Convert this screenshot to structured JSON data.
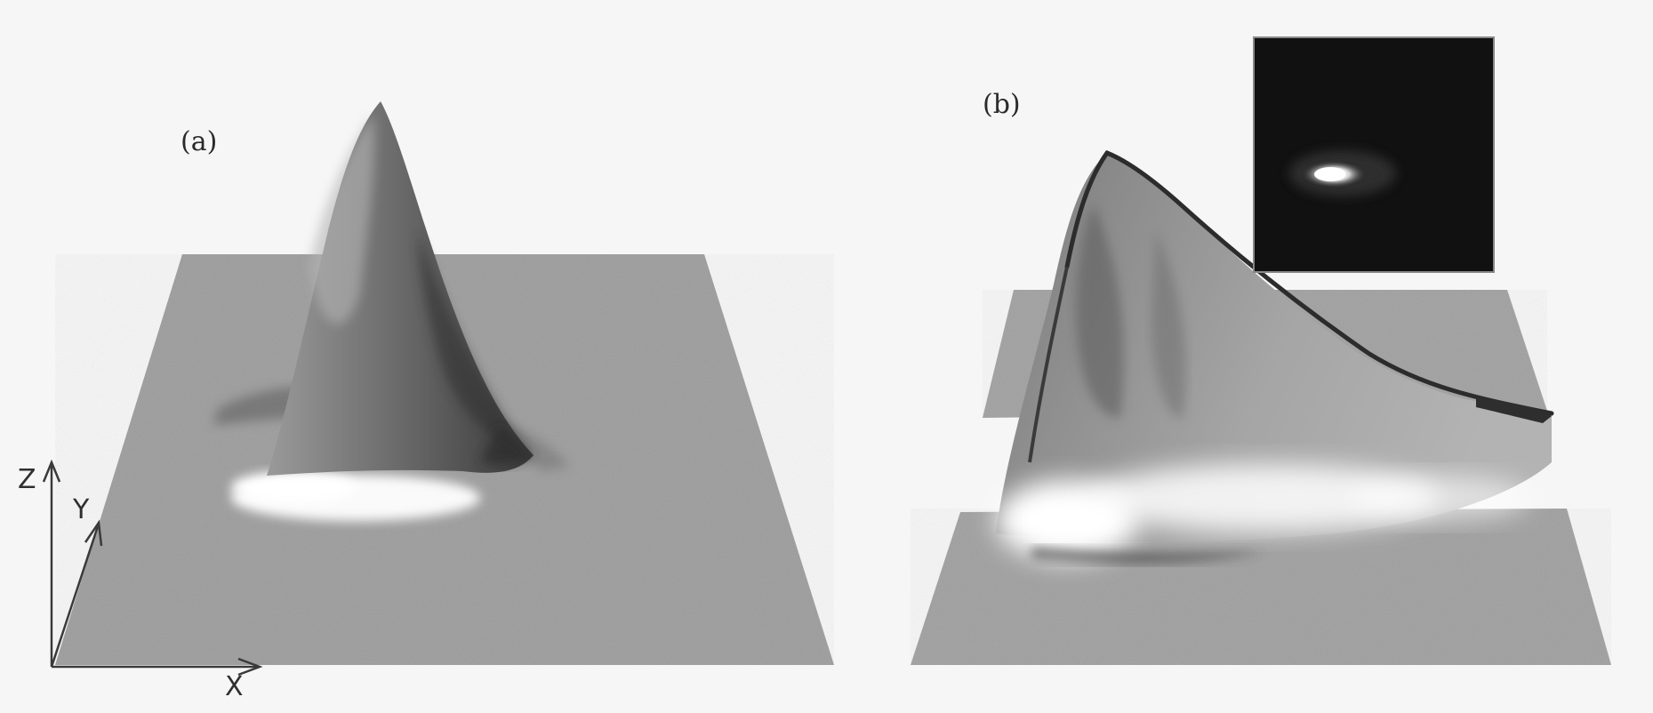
{
  "panels": {
    "a": {
      "label": "(a)"
    },
    "b": {
      "label": "(b)"
    }
  },
  "axes": {
    "x": "X",
    "y": "Y",
    "z": "Z"
  },
  "colors": {
    "background": "#f6f6f6",
    "surface": "#9c9c9c",
    "peak_dark": "#3e3e3e",
    "highlight": "#ffffff",
    "inset_background": "#111111"
  }
}
